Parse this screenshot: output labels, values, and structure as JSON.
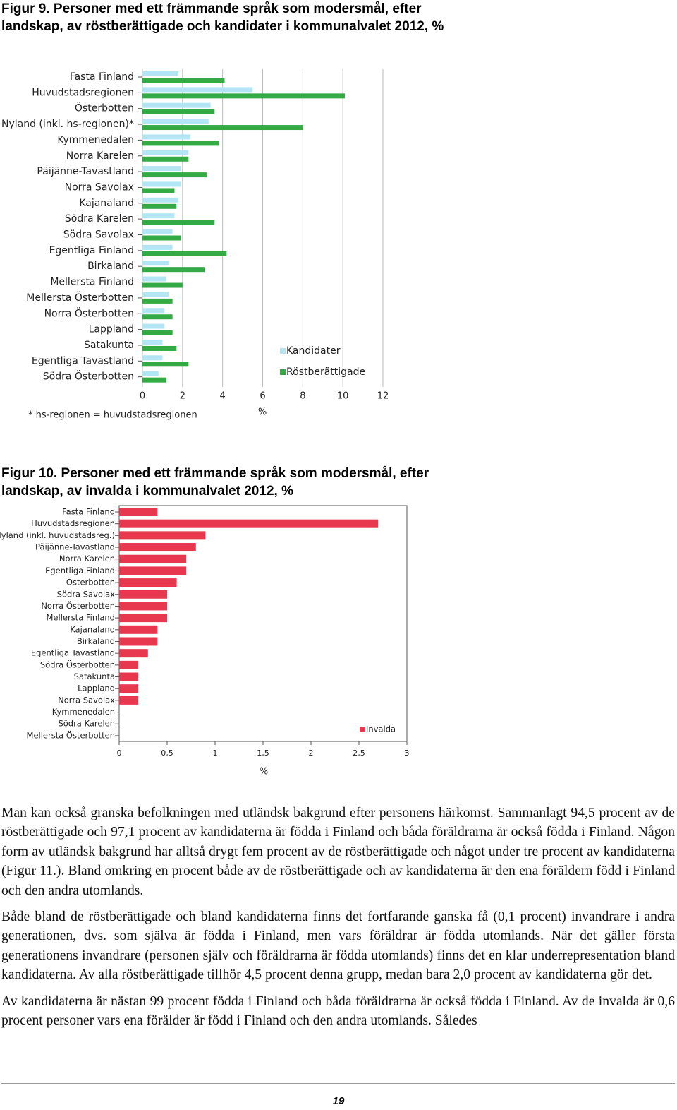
{
  "chart_data": [
    {
      "type": "barh",
      "title": "Figur 9. Personer med ett främmande språk som modersmål, efter landskap, av röstberättigade och kandidater i kommunalvalet 2012, %",
      "categories": [
        "Fasta Finland",
        "Huvudstadsregionen",
        "Österbotten",
        "Nyland (inkl. hs-regionen)*",
        "Kymmenedalen",
        "Norra Karelen",
        "Päijänne-Tavastland",
        "Norra Savolax",
        "Kajanaland",
        "Södra Karelen",
        "Södra Savolax",
        "Egentliga Finland",
        "Birkaland",
        "Mellersta Finland",
        "Mellersta Österbotten",
        "Norra Österbotten",
        "Lappland",
        "Satakunta",
        "Egentliga Tavastland",
        "Södra Österbotten"
      ],
      "series": [
        {
          "name": "Kandidater",
          "color": "#b3e5f5",
          "values": [
            1.8,
            5.5,
            3.4,
            3.3,
            2.4,
            2.3,
            1.9,
            1.9,
            1.8,
            1.6,
            1.5,
            1.5,
            1.3,
            1.2,
            1.3,
            1.1,
            1.1,
            1.0,
            1.0,
            0.8
          ]
        },
        {
          "name": "Röstberättigade",
          "color": "#33aa44",
          "values": [
            4.1,
            10.1,
            3.6,
            8.0,
            3.8,
            2.3,
            3.2,
            1.6,
            1.7,
            3.6,
            1.9,
            4.2,
            3.1,
            2.0,
            1.5,
            1.5,
            1.5,
            1.7,
            2.3,
            1.2
          ]
        }
      ],
      "xlim": [
        0,
        12
      ],
      "xticks": [
        0,
        2,
        4,
        6,
        8,
        10,
        12
      ],
      "x_label": "%",
      "grid": true,
      "legend": "lower right",
      "note": "* hs-regionen = huvudstadsregionen"
    },
    {
      "type": "barh",
      "title": "Figur 10. Personer med ett främmande språk som modersmål, efter landskap, av invalda i kommunalvalet 2012, %",
      "categories": [
        "Fasta Finland",
        "Huvudstadsregionen",
        "Nyland (inkl. huvudstadsreg.)",
        "Päijänne-Tavastland",
        "Norra Karelen",
        "Egentliga Finland",
        "Österbotten",
        "Södra Savolax",
        "Norra Österbotten",
        "Mellersta Finland",
        "Kajanaland",
        "Birkaland",
        "Egentliga Tavastland",
        "Södra Österbotten",
        "Satakunta",
        "Lappland",
        "Norra Savolax",
        "Kymmenedalen",
        "Södra Karelen",
        "Mellersta Österbotten"
      ],
      "series": [
        {
          "name": "Invalda",
          "color": "#e8384f",
          "values": [
            0.4,
            2.7,
            0.9,
            0.8,
            0.7,
            0.7,
            0.6,
            0.5,
            0.5,
            0.5,
            0.4,
            0.4,
            0.3,
            0.2,
            0.2,
            0.2,
            0.2,
            0,
            0,
            0
          ]
        }
      ],
      "xlim": [
        0,
        3
      ],
      "xticks": [
        0,
        {
          "value": 0.5,
          "label": "0,5"
        },
        1,
        {
          "value": 1.5,
          "label": "1,5"
        },
        2,
        {
          "value": 2.5,
          "label": "2,5"
        },
        3
      ],
      "x_label": "%",
      "grid": false,
      "legend": "lower right"
    }
  ],
  "paragraphs": [
    "Man kan också granska befolkningen med utländsk bakgrund efter personens härkomst. Sammanlagt 94,5 procent av de röstberättigade och 97,1 procent av kandidaterna är födda i Finland och båda föräldrarna är också födda i Finland. Någon form av utländsk bakgrund har alltså drygt fem procent av de röstberättigade och något under tre procent av kandidaterna (Figur 11.). Bland omkring en procent både av de röstberättigade och av kandidaterna är den ena föräldern född i Finland och den andra utomlands.",
    "Både bland de röstberättigade och bland kandidaterna finns det fortfarande ganska få (0,1 procent) invandrare i andra generationen, dvs. som själva är födda i Finland, men vars föräldrar är födda utomlands. När det gäller första generationens invandrare (personen själv och föräldrarna är födda utomlands) finns det en klar underrepresentation bland kandidaterna. Av alla röstberättigade tillhör 4,5 procent denna grupp, medan bara 2,0 procent av kandidaterna gör det.",
    "Av kandidaterna är nästan 99 procent födda i Finland och båda föräldrarna är också födda i Finland. Av de invalda är 0,6 procent personer vars ena förälder är född i Finland och den andra utomlands. Således"
  ],
  "page_number": "19"
}
